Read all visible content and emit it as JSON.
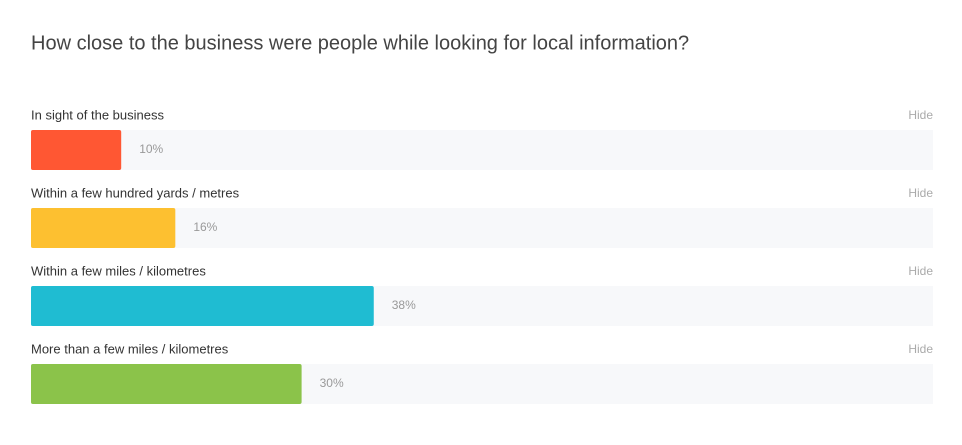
{
  "chart_data": {
    "type": "bar",
    "orientation": "horizontal",
    "title": "How close to the business were people while looking for local information?",
    "categories": [
      "In sight of the business",
      "Within a few hundred yards / metres",
      "Within a few miles / kilometres",
      "More than a few miles / kilometres"
    ],
    "values": [
      10,
      16,
      38,
      30
    ],
    "value_labels": [
      "10%",
      "16%",
      "38%",
      "30%"
    ],
    "colors": [
      "#ff5733",
      "#fdc030",
      "#1fbcd2",
      "#8bc34a"
    ],
    "xlim": [
      0,
      100
    ],
    "track_color": "#f7f8fa",
    "hide_label": "Hide"
  }
}
